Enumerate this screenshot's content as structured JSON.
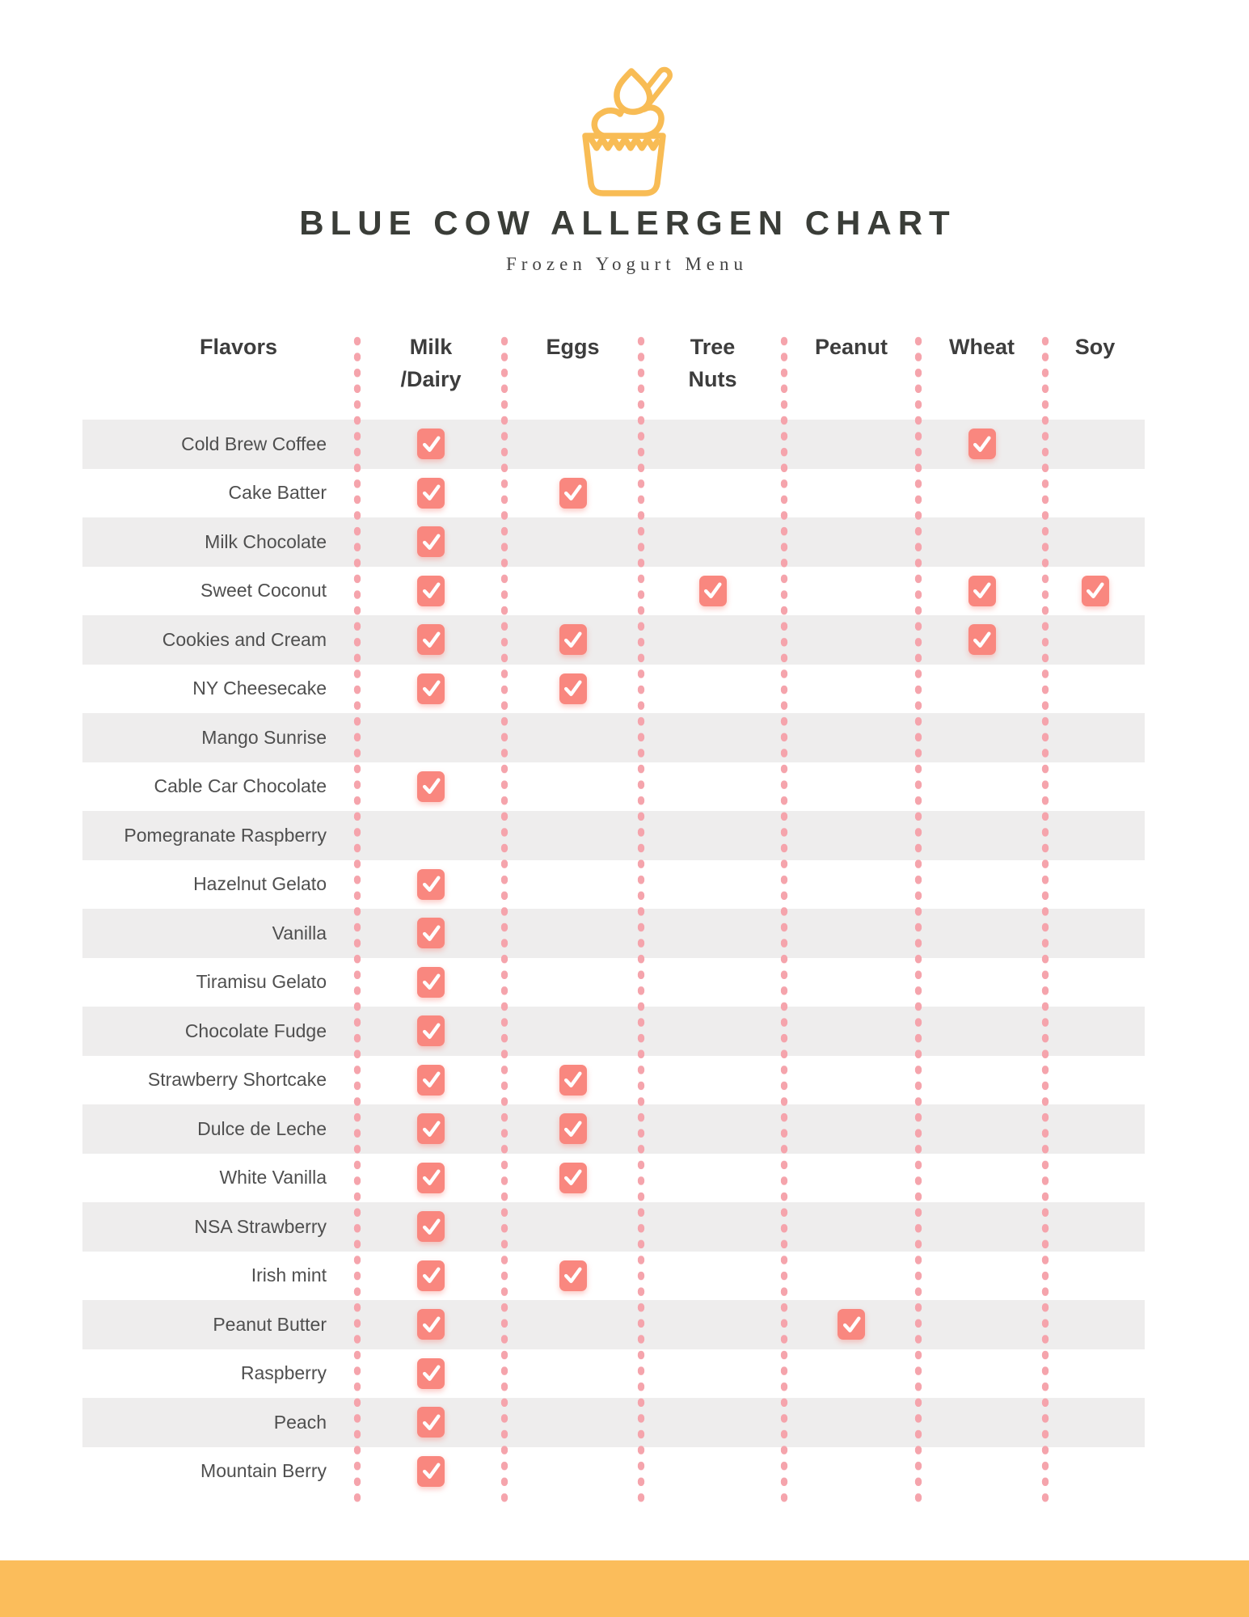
{
  "page": {
    "title": "BLUE COW ALLERGEN CHART",
    "subtitle": "Frozen Yogurt Menu"
  },
  "icons": {
    "logo": "frozen-yogurt-cup-icon",
    "check": "check-icon"
  },
  "colors": {
    "accent_yellow": "#FBBD5B",
    "check_salmon": "#F9877F",
    "dot_pink": "#F5A4AC",
    "row_gray": "#EEEDED",
    "title_dark": "#3A3D38"
  },
  "chart_data": {
    "type": "table",
    "title": "BLUE COW ALLERGEN CHART",
    "subtitle": "Frozen Yogurt Menu",
    "columns": [
      "Flavors",
      "Milk\n/Dairy",
      "Eggs",
      "Tree\nNuts",
      "Peanut",
      "Wheat",
      "Soy"
    ],
    "allergen_keys": [
      "milk-dairy",
      "eggs",
      "tree-nuts",
      "peanut",
      "wheat",
      "soy"
    ],
    "rows": [
      {
        "flavor": "Cold Brew Coffee",
        "checks": [
          1,
          0,
          0,
          0,
          1,
          0
        ]
      },
      {
        "flavor": "Cake Batter",
        "checks": [
          1,
          1,
          0,
          0,
          0,
          0
        ]
      },
      {
        "flavor": "Milk Chocolate",
        "checks": [
          1,
          0,
          0,
          0,
          0,
          0
        ]
      },
      {
        "flavor": "Sweet Coconut",
        "checks": [
          1,
          0,
          1,
          0,
          1,
          1
        ]
      },
      {
        "flavor": "Cookies and Cream",
        "checks": [
          1,
          1,
          0,
          0,
          1,
          0
        ]
      },
      {
        "flavor": "NY Cheesecake",
        "checks": [
          1,
          1,
          0,
          0,
          0,
          0
        ]
      },
      {
        "flavor": "Mango Sunrise",
        "checks": [
          0,
          0,
          0,
          0,
          0,
          0
        ]
      },
      {
        "flavor": "Cable Car Chocolate",
        "checks": [
          1,
          0,
          0,
          0,
          0,
          0
        ]
      },
      {
        "flavor": "Pomegranate Raspberry",
        "checks": [
          0,
          0,
          0,
          0,
          0,
          0
        ]
      },
      {
        "flavor": "Hazelnut Gelato",
        "checks": [
          1,
          0,
          0,
          0,
          0,
          0
        ]
      },
      {
        "flavor": "Vanilla",
        "checks": [
          1,
          0,
          0,
          0,
          0,
          0
        ]
      },
      {
        "flavor": "Tiramisu Gelato",
        "checks": [
          1,
          0,
          0,
          0,
          0,
          0
        ]
      },
      {
        "flavor": "Chocolate Fudge",
        "checks": [
          1,
          0,
          0,
          0,
          0,
          0
        ]
      },
      {
        "flavor": "Strawberry Shortcake",
        "checks": [
          1,
          1,
          0,
          0,
          0,
          0
        ]
      },
      {
        "flavor": "Dulce de Leche",
        "checks": [
          1,
          1,
          0,
          0,
          0,
          0
        ]
      },
      {
        "flavor": "White Vanilla",
        "checks": [
          1,
          1,
          0,
          0,
          0,
          0
        ]
      },
      {
        "flavor": "NSA Strawberry",
        "checks": [
          1,
          0,
          0,
          0,
          0,
          0
        ]
      },
      {
        "flavor": "Irish mint",
        "checks": [
          1,
          1,
          0,
          0,
          0,
          0
        ]
      },
      {
        "flavor": "Peanut Butter",
        "checks": [
          1,
          0,
          0,
          1,
          0,
          0
        ]
      },
      {
        "flavor": "Raspberry",
        "checks": [
          1,
          0,
          0,
          0,
          0,
          0
        ]
      },
      {
        "flavor": "Peach",
        "checks": [
          1,
          0,
          0,
          0,
          0,
          0
        ]
      },
      {
        "flavor": "Mountain Berry",
        "checks": [
          1,
          0,
          0,
          0,
          0,
          0
        ]
      }
    ]
  }
}
